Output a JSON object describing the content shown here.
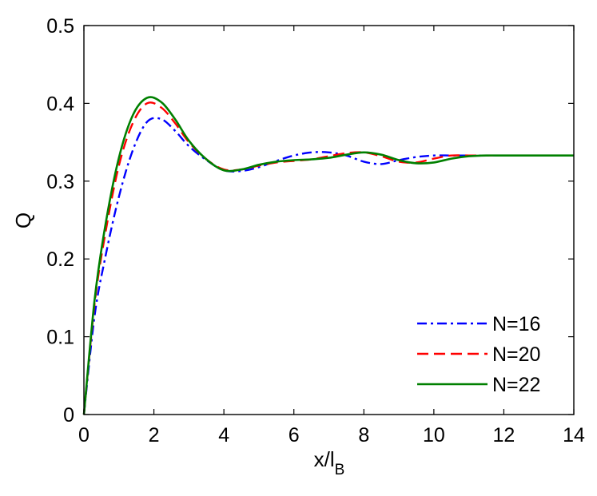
{
  "chart_data": {
    "type": "line",
    "title": "",
    "xlabel": {
      "main": "x/l",
      "sub": "B"
    },
    "ylabel": "Q",
    "xlim": [
      0,
      14
    ],
    "ylim": [
      0,
      0.5
    ],
    "xticks": [
      "0",
      "2",
      "4",
      "6",
      "8",
      "10",
      "12",
      "14"
    ],
    "yticks": [
      "0",
      "0.1",
      "0.2",
      "0.3",
      "0.4",
      "0.5"
    ],
    "grid": false,
    "legend_position": "bottom-right",
    "series": [
      {
        "name": "N=16",
        "color": "#0000ff",
        "style": "dashdot",
        "x": [
          0,
          0.3,
          0.6,
          1.0,
          1.4,
          1.8,
          2.2,
          2.6,
          3.0,
          3.5,
          4.0,
          4.5,
          5.0,
          5.5,
          6.0,
          6.5,
          7.0,
          7.5,
          8.0,
          8.5,
          9.0,
          9.5,
          10.0,
          10.5,
          11.0,
          11.5,
          12.0,
          13.0,
          14.0
        ],
        "y": [
          0,
          0.125,
          0.2,
          0.28,
          0.34,
          0.376,
          0.38,
          0.365,
          0.345,
          0.327,
          0.314,
          0.313,
          0.318,
          0.326,
          0.333,
          0.337,
          0.337,
          0.333,
          0.325,
          0.322,
          0.327,
          0.331,
          0.333,
          0.333,
          0.333,
          0.333,
          0.333,
          0.333,
          0.333
        ]
      },
      {
        "name": "N=20",
        "color": "#ff0000",
        "style": "dashed",
        "x": [
          0,
          0.3,
          0.6,
          1.0,
          1.4,
          1.8,
          2.2,
          2.6,
          3.0,
          3.5,
          4.0,
          4.5,
          5.0,
          5.5,
          6.0,
          6.5,
          7.0,
          7.5,
          8.0,
          8.5,
          9.0,
          9.5,
          10.0,
          10.5,
          11.0,
          11.5,
          12.0,
          13.0,
          14.0
        ],
        "y": [
          0,
          0.14,
          0.23,
          0.32,
          0.375,
          0.4,
          0.395,
          0.375,
          0.35,
          0.328,
          0.315,
          0.315,
          0.32,
          0.324,
          0.326,
          0.328,
          0.332,
          0.336,
          0.337,
          0.332,
          0.325,
          0.324,
          0.329,
          0.333,
          0.333,
          0.333,
          0.333,
          0.333,
          0.333
        ]
      },
      {
        "name": "N=22",
        "color": "#008000",
        "style": "solid",
        "x": [
          0,
          0.3,
          0.6,
          1.0,
          1.4,
          1.8,
          2.2,
          2.6,
          3.0,
          3.5,
          4.0,
          4.5,
          5.0,
          5.5,
          6.0,
          6.5,
          7.0,
          7.5,
          8.0,
          8.5,
          9.0,
          9.5,
          10.0,
          10.5,
          11.0,
          11.5,
          12.0,
          13.0,
          14.0
        ],
        "y": [
          0,
          0.145,
          0.24,
          0.33,
          0.385,
          0.407,
          0.402,
          0.38,
          0.352,
          0.328,
          0.314,
          0.315,
          0.321,
          0.325,
          0.327,
          0.328,
          0.33,
          0.334,
          0.337,
          0.334,
          0.327,
          0.323,
          0.324,
          0.329,
          0.332,
          0.333,
          0.333,
          0.333,
          0.333
        ]
      }
    ]
  }
}
